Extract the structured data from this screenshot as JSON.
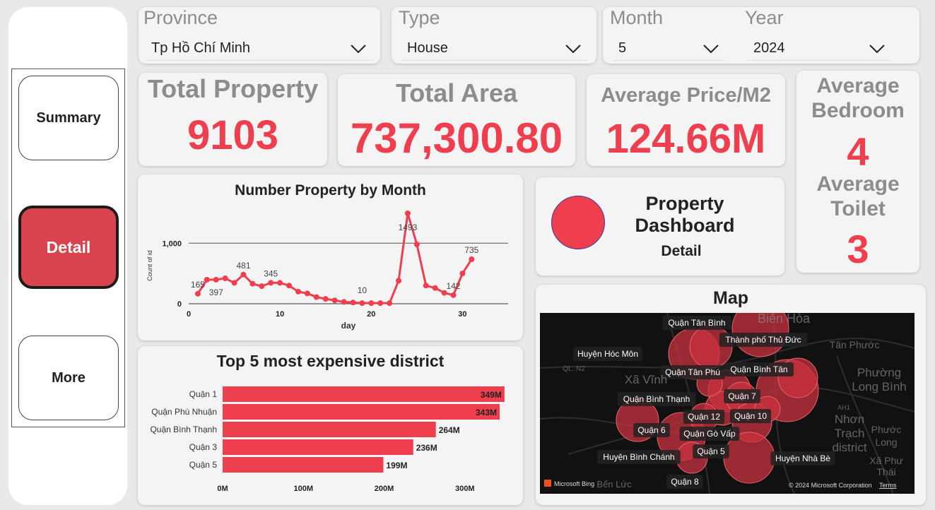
{
  "nav": {
    "summary": "Summary",
    "detail": "Detail",
    "more": "More"
  },
  "filters": {
    "province": {
      "label": "Province",
      "value": "Tp Hồ Chí Minh"
    },
    "type": {
      "label": "Type",
      "value": "House"
    },
    "month": {
      "label": "Month",
      "value": "5"
    },
    "year": {
      "label": "Year",
      "value": "2024"
    }
  },
  "kpis": {
    "total_property": {
      "label": "Total Property",
      "value": "9103"
    },
    "total_area": {
      "label": "Total Area",
      "value": "737,300.80"
    },
    "avg_price": {
      "label": "Average Price/M2",
      "value": "124.66M"
    },
    "avg_bedroom": {
      "label_line1": "Average",
      "label_line2": "Bedroom",
      "value": "4"
    },
    "avg_toilet": {
      "label_line1": "Average",
      "label_line2": "Toilet",
      "value": "3"
    }
  },
  "dashboard_card": {
    "title_line1": "Property",
    "title_line2": "Dashboard",
    "subtitle": "Detail"
  },
  "map": {
    "title": "Map",
    "labels": [
      "Quận Tân Bình",
      "Thành phố Thủ Đức",
      "Huyện Hóc Môn",
      "Quận Tân Phú",
      "Quận Bình Tân",
      "Quận 7",
      "Quận Bình Thạnh",
      "Quận 12",
      "Quận 10",
      "Quận 6",
      "Quận Gò Vấp",
      "Quận 5",
      "Huyện Bình Chánh",
      "Huyện Nhà Bè",
      "Quận 8"
    ],
    "base_labels": [
      "Biên Hòa",
      "Tân Phước",
      "Phường",
      "Long Bình",
      "Nhơn",
      "Trạch",
      "district",
      "Phước",
      "Long",
      "Xã Phư",
      "Thái",
      "Xã Vĩnh",
      "Bến Lức",
      "QL. N2",
      "AH1"
    ],
    "bing": "Microsoft Bing",
    "copyright": "© 2024 Microsoft Corporation",
    "terms": "Terms"
  },
  "chart_data": [
    {
      "type": "line",
      "title": "Number Property by Month",
      "xlabel": "day",
      "ylabel": "Count of id",
      "xlim": [
        0,
        35
      ],
      "ylim": [
        0,
        1493
      ],
      "x_ticks": [
        "0",
        "10",
        "20",
        "30"
      ],
      "y_ticks": [
        "0",
        "1,000"
      ],
      "x": [
        1,
        2,
        3,
        4,
        5,
        6,
        7,
        8,
        9,
        10,
        11,
        12,
        13,
        14,
        15,
        16,
        17,
        18,
        19,
        20,
        21,
        22,
        23,
        24,
        25,
        26,
        27,
        28,
        29,
        30,
        31
      ],
      "values": [
        165,
        397,
        397,
        420,
        345,
        481,
        330,
        290,
        345,
        345,
        300,
        200,
        170,
        110,
        80,
        55,
        30,
        20,
        10,
        10,
        10,
        10,
        380,
        1493,
        980,
        300,
        260,
        180,
        142,
        500,
        735
      ],
      "data_labels": [
        {
          "x": 1,
          "text": "165"
        },
        {
          "x": 3,
          "text": "397"
        },
        {
          "x": 6,
          "text": "481"
        },
        {
          "x": 9,
          "text": "345"
        },
        {
          "x": 19,
          "text": "10"
        },
        {
          "x": 24,
          "text": "1493"
        },
        {
          "x": 29,
          "text": "142"
        },
        {
          "x": 31,
          "text": "735"
        }
      ],
      "color": "#ef3e4e"
    },
    {
      "type": "bar",
      "title": "Top 5 most expensive district",
      "categories": [
        "Quận 1",
        "Quận Phú Nhuận",
        "Quận Bình Thạnh",
        "Quận 3",
        "Quận 5"
      ],
      "values": [
        349,
        343,
        264,
        236,
        199
      ],
      "value_labels": [
        "349M",
        "343M",
        "264M",
        "236M",
        "199M"
      ],
      "xlim": [
        0,
        350
      ],
      "x_ticks": [
        "0M",
        "100M",
        "200M",
        "300M"
      ],
      "color": "#ef3e4e"
    }
  ]
}
